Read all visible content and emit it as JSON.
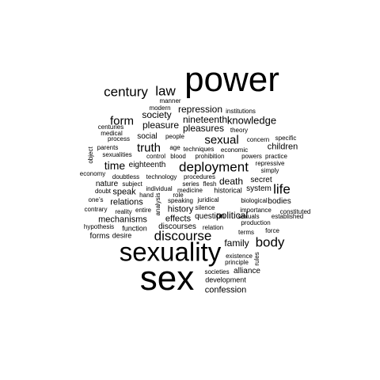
{
  "words": [
    "power",
    "sex",
    "sexuality",
    "discourse",
    "deployment",
    "century",
    "law",
    "body",
    "life",
    "sexual",
    "form",
    "truth",
    "time",
    "knowledge",
    "repression",
    "society",
    "nineteenth",
    "pleasure",
    "pleasures",
    "children",
    "family",
    "death",
    "political",
    "relations",
    "mechanisms",
    "history",
    "effects",
    "speak",
    "nature",
    "social",
    "eighteenth",
    "system",
    "secret",
    "bodies",
    "alliance",
    "confession",
    "development",
    "societies",
    "principle",
    "existence",
    "forms",
    "desire",
    "function",
    "hypothesis",
    "contrary",
    "question",
    "discourses",
    "manner",
    "modern",
    "institutions",
    "theory",
    "specific",
    "practice",
    "repressive",
    "simply",
    "powers",
    "economic",
    "techniques",
    "prohibition",
    "blood",
    "control",
    "age",
    "people",
    "concern",
    "parents",
    "sexualities",
    "process",
    "medical",
    "centuries",
    "object",
    "economy",
    "doubtless",
    "subject",
    "technology",
    "procedures",
    "series",
    "flesh",
    "medicine",
    "historical",
    "individual",
    "role",
    "juridical",
    "speaking",
    "silence",
    "relation",
    "hand",
    "analysis",
    "entire",
    "reality",
    "one’s",
    "doubt",
    "biological",
    "importance",
    "sexuals",
    "established",
    "constituted",
    "production",
    "terms",
    "force",
    "rules"
  ]
}
